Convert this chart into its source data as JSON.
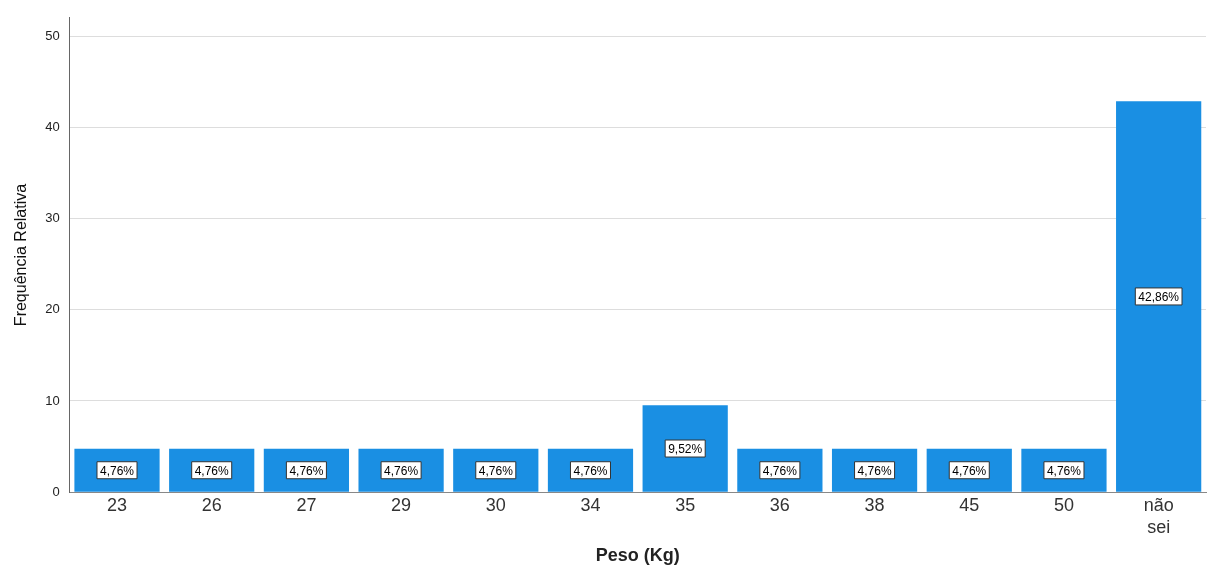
{
  "chart_data": {
    "type": "bar",
    "xlabel": "Peso (Kg)",
    "ylabel": "Frequência Relativa",
    "categories": [
      "23",
      "26",
      "27",
      "29",
      "30",
      "34",
      "35",
      "36",
      "38",
      "45",
      "50",
      "não sei"
    ],
    "values": [
      4.76,
      4.76,
      4.76,
      4.76,
      4.76,
      4.76,
      9.52,
      4.76,
      4.76,
      4.76,
      4.76,
      42.86
    ],
    "value_labels": [
      "4,76%",
      "4,76%",
      "4,76%",
      "4,76%",
      "4,76%",
      "4,76%",
      "9,52%",
      "4,76%",
      "4,76%",
      "4,76%",
      "4,76%",
      "42,86%"
    ],
    "color": "#1a8fe3",
    "ylim": [
      0,
      52
    ],
    "yticks": [
      0,
      10,
      20,
      30,
      40,
      50
    ],
    "grid": "y",
    "legend": false
  }
}
